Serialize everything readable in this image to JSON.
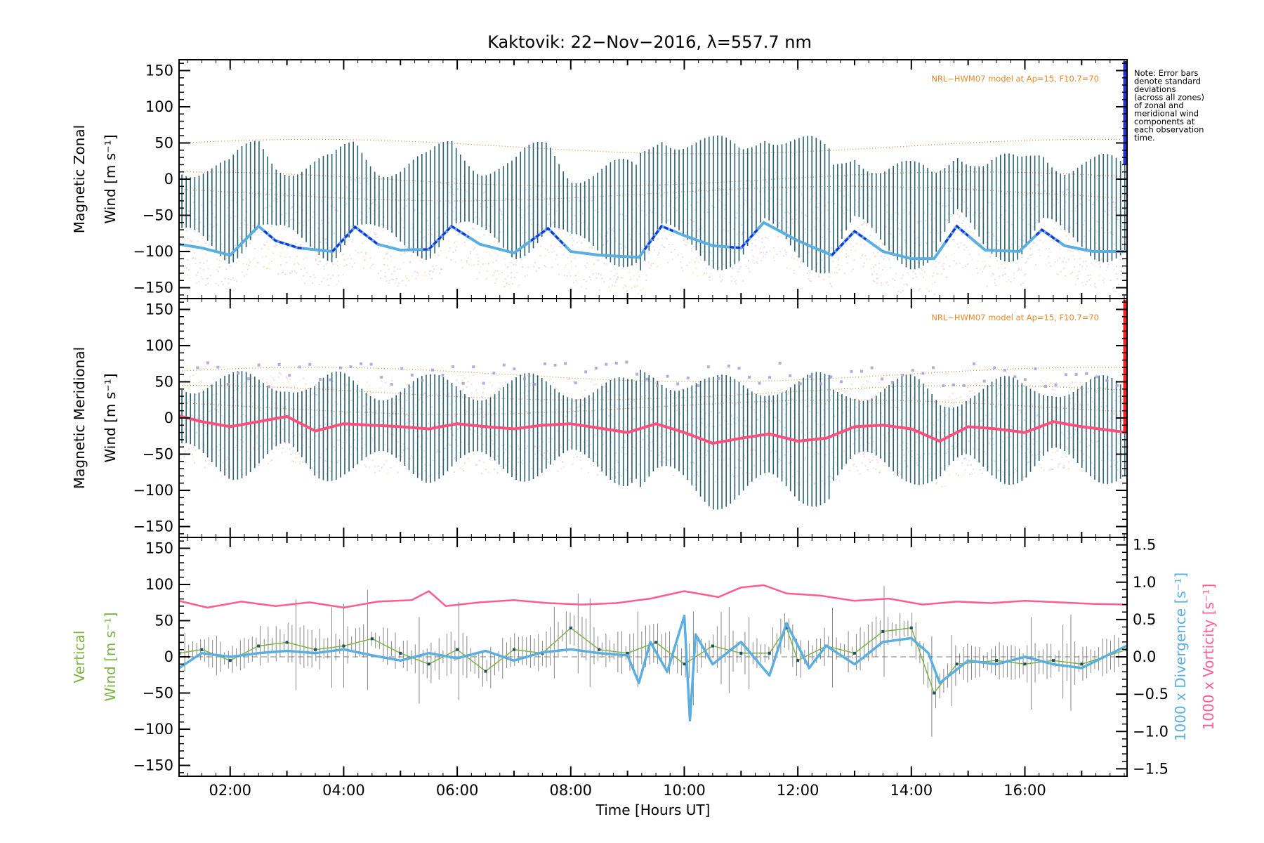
{
  "title": "Kaktovik: 22−Nov−2016, λ=557.7 nm",
  "xlabel": "Time [Hours UT]",
  "x_ticks": [
    "02:00",
    "04:00",
    "06:00",
    "08:00",
    "10:00",
    "12:00",
    "14:00",
    "16:00"
  ],
  "y_ticks": [
    "150",
    "100",
    "50",
    "0",
    "−50",
    "−100",
    "−150"
  ],
  "right_ticks": [
    "1.5",
    "1.0",
    "0.5",
    "0.0",
    "−0.5",
    "−1.0",
    "−1.5"
  ],
  "note_lines": [
    "Note: Error bars",
    "denote standard",
    "deviations",
    "(across all zones)",
    "of zonal and",
    "meridional wind",
    "components at",
    "each observation",
    "time."
  ],
  "model_label": "NRL−HWM07 model at Ap=15, F10.7=70",
  "panels": {
    "zonal": {
      "ylabel_line1": "Magnetic Zonal",
      "ylabel_line2": "Wind [m s⁻¹]"
    },
    "meridional": {
      "ylabel_line1": "Magnetic Meridional",
      "ylabel_line2": "Wind [m s⁻¹]"
    },
    "vertical": {
      "ylabel_line1": "Vertical",
      "ylabel_line2": "Wind [m s⁻¹]",
      "right_label_divergence": "1000 x Divergence [s⁻¹]",
      "right_label_vorticity": "1000 x Vorticity [s⁻¹]"
    }
  },
  "colors": {
    "zonal_mean": "#5aaee0",
    "zonal_highlight": "#1f2fd8",
    "meridional_mean": "#ff4f7b",
    "error_bar": "#2a5f6e",
    "vertical_wind": "#7cb342",
    "divergence": "#5aaee0",
    "vorticity": "#ff5c8f",
    "model": "#e8892b",
    "scatter_meridional": "#a89cd6",
    "zonal_edge": "#2233cc",
    "meridional_edge": "#ff2020"
  },
  "chart_data": [
    {
      "type": "line",
      "title": "Kaktovik: 22−Nov−2016, λ=557.7 nm",
      "ylabel": "Magnetic Zonal Wind [m s⁻¹]",
      "xlim": [
        1.1,
        17.8
      ],
      "ylim": [
        -165,
        165
      ],
      "series": [
        {
          "x": [
            1.1,
            1.5,
            2.0,
            2.5,
            2.8,
            3.2,
            3.8,
            4.2,
            4.6,
            5.0,
            5.5,
            5.9,
            6.4,
            7.0,
            7.6,
            8.0,
            8.5,
            9.2,
            9.6,
            10.0,
            10.5,
            11.0,
            11.4,
            12.0,
            12.6,
            13.0,
            13.5,
            14.0,
            14.4,
            14.8,
            15.3,
            15.9,
            16.3,
            16.7,
            17.2,
            17.8
          ],
          "y": [
            -90,
            -95,
            -105,
            -65,
            -85,
            -95,
            -100,
            -66,
            -90,
            -98,
            -97,
            -65,
            -90,
            -102,
            -68,
            -100,
            -105,
            -108,
            -65,
            -78,
            -92,
            -95,
            -60,
            -85,
            -105,
            -72,
            -100,
            -110,
            -110,
            -65,
            -98,
            -100,
            -70,
            -92,
            -100,
            -100
          ]
        }
      ],
      "error_half_range": 55
    },
    {
      "type": "line",
      "ylabel": "Magnetic Meridional Wind [m s⁻¹]",
      "xlim": [
        1.1,
        17.8
      ],
      "ylim": [
        -165,
        165
      ],
      "series": [
        {
          "x": [
            1.1,
            1.5,
            2.0,
            2.5,
            3.0,
            3.5,
            4.0,
            4.5,
            5.0,
            5.5,
            6.0,
            6.5,
            7.0,
            7.5,
            8.0,
            8.5,
            9.0,
            9.5,
            10.0,
            10.5,
            11.0,
            11.5,
            12.0,
            12.5,
            13.0,
            13.5,
            14.0,
            14.5,
            15.0,
            15.5,
            16.0,
            16.5,
            17.0,
            17.8
          ],
          "y": [
            3,
            -5,
            -12,
            -5,
            2,
            -18,
            -8,
            -10,
            -12,
            -15,
            -8,
            -12,
            -15,
            -10,
            -8,
            -14,
            -20,
            -8,
            -20,
            -35,
            -28,
            -22,
            -32,
            -28,
            -12,
            -10,
            -15,
            -32,
            -12,
            -15,
            -20,
            -5,
            -12,
            -20
          ]
        }
      ],
      "error_half_range": 55
    },
    {
      "type": "line",
      "ylabel": "Vertical Wind [m s⁻¹]",
      "y2label": "1000 x Divergence [s⁻¹] / 1000 x Vorticity [s⁻¹]",
      "xlim": [
        1.1,
        17.8
      ],
      "ylim": [
        -165,
        165
      ],
      "y2lim": [
        -1.6,
        1.6
      ],
      "series": [
        {
          "name": "1000 x Vorticity [s⁻¹]",
          "axis": "right",
          "x": [
            1.1,
            1.6,
            2.2,
            2.8,
            3.4,
            4.0,
            4.6,
            5.2,
            5.5,
            5.8,
            6.4,
            7.0,
            7.6,
            8.2,
            8.8,
            9.4,
            10.0,
            10.6,
            11.0,
            11.4,
            11.8,
            12.4,
            13.0,
            13.6,
            14.2,
            14.8,
            15.4,
            16.0,
            16.6,
            17.2,
            17.8
          ],
          "y": [
            0.75,
            0.66,
            0.74,
            0.68,
            0.73,
            0.66,
            0.74,
            0.76,
            0.88,
            0.68,
            0.73,
            0.76,
            0.72,
            0.7,
            0.72,
            0.78,
            0.88,
            0.8,
            0.93,
            0.96,
            0.85,
            0.82,
            0.75,
            0.78,
            0.7,
            0.74,
            0.72,
            0.75,
            0.73,
            0.71,
            0.7
          ]
        },
        {
          "name": "1000 x Divergence [s⁻¹]",
          "axis": "right",
          "x": [
            1.1,
            1.5,
            2.0,
            2.5,
            3.0,
            3.5,
            4.0,
            4.5,
            5.0,
            5.5,
            6.0,
            6.5,
            7.0,
            7.5,
            8.0,
            8.5,
            9.0,
            9.2,
            9.4,
            9.7,
            10.0,
            10.1,
            10.2,
            10.5,
            11.0,
            11.5,
            11.8,
            12.2,
            12.5,
            13.0,
            13.5,
            14.0,
            14.3,
            14.5,
            15.0,
            15.5,
            16.0,
            16.5,
            17.0,
            17.8
          ],
          "y": [
            -0.15,
            0.05,
            0.0,
            0.05,
            0.08,
            0.05,
            0.1,
            0.02,
            -0.05,
            0.05,
            -0.02,
            0.08,
            -0.05,
            0.06,
            0.1,
            0.05,
            0.02,
            -0.35,
            0.2,
            -0.2,
            0.55,
            -0.85,
            0.3,
            -0.1,
            0.2,
            -0.25,
            0.45,
            -0.15,
            0.15,
            -0.1,
            0.2,
            0.25,
            0.05,
            -0.35,
            -0.05,
            -0.1,
            0.0,
            -0.1,
            -0.15,
            0.15
          ]
        },
        {
          "name": "Vertical",
          "axis": "left",
          "x": [
            1.1,
            1.5,
            2.0,
            2.5,
            3.0,
            3.5,
            4.0,
            4.5,
            5.0,
            5.5,
            6.0,
            6.5,
            7.0,
            7.5,
            8.0,
            8.5,
            9.0,
            9.5,
            10.0,
            10.5,
            11.0,
            11.5,
            11.8,
            12.0,
            12.5,
            13.0,
            13.5,
            14.0,
            14.4,
            14.8,
            15.5,
            16.0,
            16.5,
            17.0,
            17.8
          ],
          "y": [
            5,
            10,
            -5,
            15,
            20,
            10,
            15,
            25,
            5,
            -10,
            10,
            -20,
            10,
            5,
            40,
            10,
            5,
            20,
            -10,
            15,
            5,
            5,
            40,
            -5,
            15,
            5,
            35,
            40,
            -50,
            -10,
            -5,
            -10,
            -5,
            -10,
            10
          ]
        }
      ]
    }
  ]
}
